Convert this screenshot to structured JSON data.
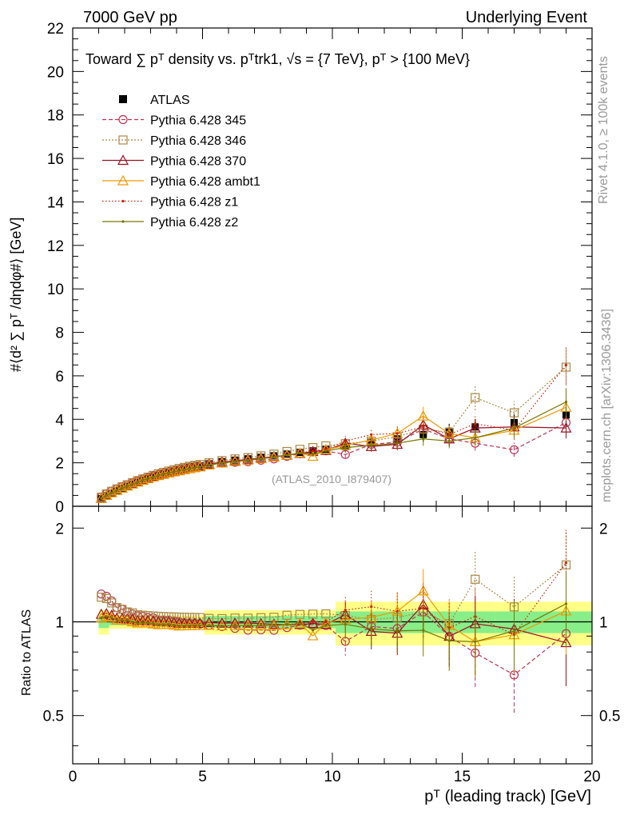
{
  "header": {
    "left": "7000 GeV pp",
    "right": "Underlying Event"
  },
  "side_labels": {
    "rivet": "Rivet 4.1.0, ≥ 100k events",
    "mcplots": "mcplots.cern.ch [arXiv:1306.3436]"
  },
  "watermark": "(ATLAS_2010_I879407)",
  "axes": {
    "main_ylabel": "#⟨d² ∑ pᵀ /dηdφ#⟩ [GeV]",
    "ratio_ylabel": "Ratio to ATLAS",
    "xlabel": "pᵀ (leading track) [GeV]"
  },
  "chart_data": {
    "type": "line",
    "title": "Toward ∑ pᵀ density vs. pᵀtrk1, √s = {7 TeV}, pᵀ > {100 MeV}",
    "xlim": [
      0,
      20
    ],
    "ylim": [
      0,
      22
    ],
    "ratio_ylim": [
      0.35,
      2.35
    ],
    "x_ticks": [
      0,
      5,
      10,
      15,
      20
    ],
    "x_tick_labels": [
      "0",
      "5",
      "10",
      "15",
      "20"
    ],
    "y_ticks": [
      0,
      2,
      4,
      6,
      8,
      10,
      12,
      14,
      16,
      18,
      20,
      22
    ],
    "y_tick_labels": [
      "0",
      "2",
      "4",
      "6",
      "8",
      "10",
      "12",
      "14",
      "16",
      "18",
      "20",
      "22"
    ],
    "ratio_ticks": [
      0.5,
      1,
      2
    ],
    "ratio_tick_labels": [
      "0.5",
      "1",
      "2"
    ],
    "x": [
      1.1,
      1.3,
      1.5,
      1.7,
      1.9,
      2.1,
      2.3,
      2.5,
      2.7,
      2.9,
      3.1,
      3.3,
      3.5,
      3.7,
      3.9,
      4.1,
      4.3,
      4.5,
      4.7,
      4.9,
      5.25,
      5.75,
      6.25,
      6.75,
      7.25,
      7.75,
      8.25,
      8.75,
      9.25,
      9.75,
      10.5,
      11.5,
      12.5,
      13.5,
      14.5,
      15.5,
      17,
      19
    ],
    "series": [
      {
        "name": "ATLAS",
        "color": "#000000",
        "values": [
          0.35,
          0.48,
          0.6,
          0.72,
          0.82,
          0.92,
          1.02,
          1.12,
          1.2,
          1.28,
          1.36,
          1.44,
          1.5,
          1.56,
          1.62,
          1.68,
          1.73,
          1.78,
          1.82,
          1.86,
          1.95,
          2.05,
          2.12,
          2.18,
          2.25,
          2.32,
          2.4,
          2.48,
          2.55,
          2.62,
          2.75,
          2.95,
          3.1,
          3.3,
          3.45,
          3.65,
          3.85,
          4.2
        ]
      },
      {
        "name": "Pythia 6.428 345",
        "color": "#bb3355",
        "values": [
          0.43,
          0.58,
          0.7,
          0.8,
          0.9,
          0.99,
          1.08,
          1.17,
          1.25,
          1.32,
          1.4,
          1.46,
          1.52,
          1.58,
          1.63,
          1.68,
          1.72,
          1.76,
          1.8,
          1.83,
          1.9,
          1.98,
          2.02,
          2.05,
          2.12,
          2.18,
          2.3,
          2.42,
          2.5,
          2.55,
          2.38,
          2.85,
          2.95,
          3.55,
          3.1,
          2.9,
          2.6,
          3.85
        ]
      },
      {
        "name": "Pythia 6.428 346",
        "color": "#aa8844",
        "values": [
          0.42,
          0.57,
          0.69,
          0.8,
          0.9,
          0.99,
          1.09,
          1.18,
          1.26,
          1.34,
          1.42,
          1.5,
          1.56,
          1.62,
          1.68,
          1.74,
          1.79,
          1.84,
          1.88,
          1.92,
          2.0,
          2.1,
          2.18,
          2.24,
          2.32,
          2.4,
          2.52,
          2.62,
          2.7,
          2.78,
          2.88,
          3.0,
          3.2,
          3.55,
          3.4,
          5.0,
          4.3,
          6.4
        ]
      },
      {
        "name": "Pythia 6.428 370",
        "color": "#991122",
        "values": [
          0.37,
          0.51,
          0.63,
          0.74,
          0.84,
          0.94,
          1.04,
          1.13,
          1.21,
          1.29,
          1.37,
          1.44,
          1.5,
          1.56,
          1.61,
          1.66,
          1.71,
          1.76,
          1.8,
          1.84,
          1.94,
          2.03,
          2.1,
          2.16,
          2.22,
          2.28,
          2.35,
          2.43,
          2.52,
          2.57,
          2.9,
          2.75,
          2.85,
          3.75,
          3.1,
          3.6,
          3.65,
          3.6
        ]
      },
      {
        "name": "Pythia 6.428 ambt1",
        "color": "#ee9900",
        "values": [
          0.36,
          0.5,
          0.62,
          0.73,
          0.83,
          0.93,
          1.02,
          1.11,
          1.19,
          1.27,
          1.34,
          1.41,
          1.47,
          1.53,
          1.58,
          1.63,
          1.68,
          1.73,
          1.77,
          1.81,
          1.9,
          1.99,
          2.06,
          2.12,
          2.19,
          2.26,
          2.35,
          2.45,
          2.3,
          2.6,
          2.8,
          3.05,
          3.35,
          4.15,
          3.35,
          3.15,
          3.5,
          4.55
        ]
      },
      {
        "name": "Pythia 6.428 z1",
        "color": "#cc2200",
        "values": [
          0.36,
          0.5,
          0.62,
          0.73,
          0.83,
          0.93,
          1.02,
          1.11,
          1.19,
          1.27,
          1.34,
          1.41,
          1.47,
          1.53,
          1.58,
          1.63,
          1.68,
          1.73,
          1.77,
          1.81,
          1.9,
          1.99,
          2.06,
          2.12,
          2.19,
          2.26,
          2.35,
          2.45,
          2.55,
          2.62,
          3.0,
          3.3,
          3.35,
          3.65,
          3.3,
          3.8,
          3.5,
          6.5
        ]
      },
      {
        "name": "Pythia 6.428 z2",
        "color": "#777700",
        "values": [
          0.36,
          0.5,
          0.62,
          0.73,
          0.83,
          0.93,
          1.02,
          1.11,
          1.19,
          1.27,
          1.34,
          1.41,
          1.47,
          1.53,
          1.58,
          1.63,
          1.68,
          1.73,
          1.77,
          1.81,
          1.9,
          1.99,
          2.06,
          2.12,
          2.19,
          2.26,
          2.35,
          2.45,
          2.4,
          2.55,
          2.7,
          2.8,
          2.9,
          3.1,
          3.0,
          3.15,
          3.6,
          4.8
        ]
      }
    ],
    "legend": [
      "ATLAS",
      "Pythia 6.428 345",
      "Pythia 6.428 346",
      "Pythia 6.428 370",
      "Pythia 6.428 ambt1",
      "Pythia 6.428 z1",
      "Pythia 6.428 z2"
    ]
  }
}
